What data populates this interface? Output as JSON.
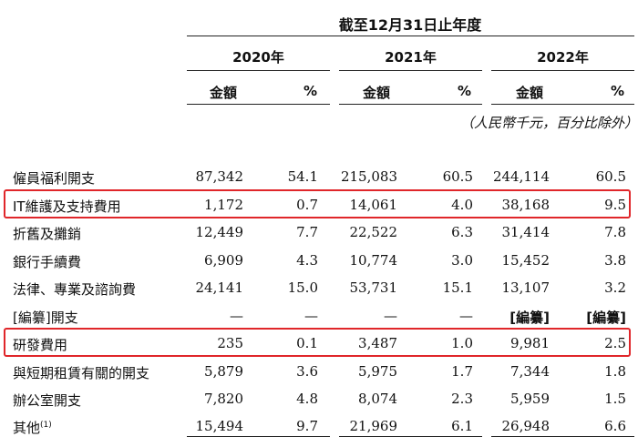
{
  "header": {
    "period": "截至12月31日止年度",
    "years": [
      "2020年",
      "2021年",
      "2022年"
    ],
    "amount_label": "金額",
    "percent_label": "%",
    "unit_note": "（人民幣千元，百分比除外）"
  },
  "rows": [
    {
      "label": "僱員福利開支",
      "note": "",
      "cells": [
        "87,342",
        "54.1",
        "215,083",
        "60.5",
        "244,114",
        "60.5"
      ]
    },
    {
      "label": "IT維護及支持費用",
      "note": "",
      "cells": [
        "1,172",
        "0.7",
        "14,061",
        "4.0",
        "38,168",
        "9.5"
      ]
    },
    {
      "label": "折舊及攤銷",
      "note": "",
      "cells": [
        "12,449",
        "7.7",
        "22,522",
        "6.3",
        "31,414",
        "7.8"
      ]
    },
    {
      "label": "銀行手續費",
      "note": "",
      "cells": [
        "6,909",
        "4.3",
        "10,774",
        "3.0",
        "15,452",
        "3.8"
      ]
    },
    {
      "label": "法律、專業及諮詢費",
      "note": "",
      "cells": [
        "24,141",
        "15.0",
        "53,731",
        "15.1",
        "13,107",
        "3.2"
      ]
    },
    {
      "label": "[編纂]開支",
      "note": "",
      "cells": [
        "—",
        "—",
        "—",
        "—",
        "[編纂]",
        "[編纂]"
      ]
    },
    {
      "label": "研發費用",
      "note": "",
      "cells": [
        "235",
        "0.1",
        "3,487",
        "1.0",
        "9,981",
        "2.5"
      ]
    },
    {
      "label": "與短期租賃有關的開支",
      "note": "",
      "cells": [
        "5,879",
        "3.6",
        "5,975",
        "1.7",
        "7,344",
        "1.8"
      ]
    },
    {
      "label": "辦公室開支",
      "note": "",
      "cells": [
        "7,820",
        "4.8",
        "8,074",
        "2.3",
        "5,959",
        "1.5"
      ]
    },
    {
      "label": "其他",
      "note": "(1)",
      "cells": [
        "15,494",
        "9.7",
        "21,969",
        "6.1",
        "26,948",
        "6.6"
      ]
    }
  ]
}
